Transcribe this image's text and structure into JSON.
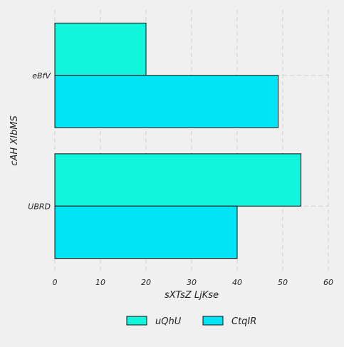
{
  "chart_data": {
    "type": "bar",
    "orientation": "horizontal",
    "categories": [
      "UBRD",
      "eBfV"
    ],
    "series": [
      {
        "name": "uQhU",
        "values": [
          54,
          20
        ],
        "color": "#10f5dc"
      },
      {
        "name": "CtqIR",
        "values": [
          40,
          49
        ],
        "color": "#00e5f5"
      }
    ],
    "xlabel": "sXTsZ LjKse",
    "ylabel": "cAH  XIbMS",
    "xlim": [
      0,
      60
    ],
    "xticks": [
      0,
      10,
      20,
      30,
      40,
      50,
      60
    ],
    "grid": true,
    "legend_position": "bottom"
  }
}
